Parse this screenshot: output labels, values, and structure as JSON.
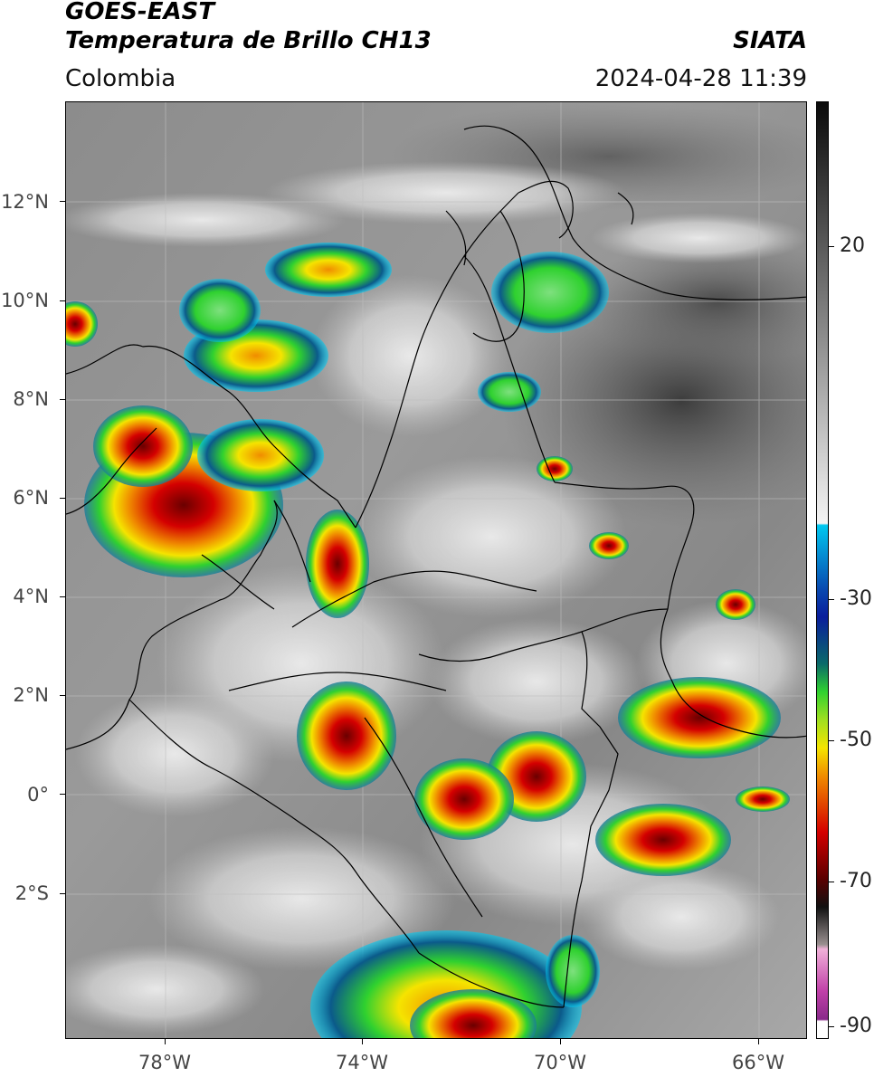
{
  "header": {
    "title_line1": "GOES-EAST",
    "title_line2": "Temperatura de Brillo CH13",
    "region": "Colombia",
    "brand": "SIATA",
    "datetime": "2024-04-28 11:39"
  },
  "map": {
    "latitude_labels": [
      "12°N",
      "10°N",
      "8°N",
      "6°N",
      "4°N",
      "2°N",
      "0°",
      "2°S"
    ],
    "longitude_labels": [
      "78°W",
      "74°W",
      "70°W",
      "66°W"
    ],
    "lat_range": [
      -4.9,
      14.0
    ],
    "lon_range": [
      -80.0,
      -65.0
    ]
  },
  "colorbar": {
    "labels": [
      "20",
      "-30",
      "-50",
      "-70",
      "-90"
    ],
    "colors": {
      "warm_gray_top": "#0a0a0a",
      "cold_white": "#f4f4f4",
      "cyan": "#00c8f0",
      "blue": "#0a1e9c",
      "green": "#2fd12f",
      "yellow": "#f5e400",
      "orange": "#f08c00",
      "red": "#d40000",
      "dark_red": "#5a0000",
      "magenta": "#e060c8",
      "purple": "#8a2a8a"
    }
  }
}
